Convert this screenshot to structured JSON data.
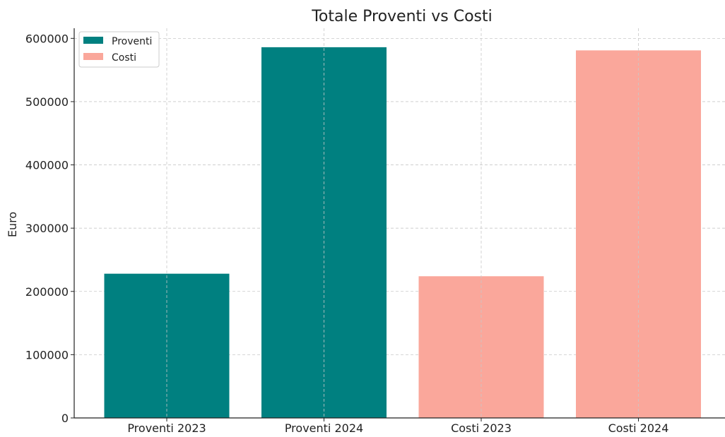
{
  "chart_data": {
    "type": "bar",
    "title": "Totale Proventi vs Costi",
    "xlabel": "",
    "ylabel": "Euro",
    "categories": [
      "Proventi 2023",
      "Proventi 2024",
      "Costi 2023",
      "Costi 2024"
    ],
    "values": [
      228000,
      586000,
      224000,
      581000
    ],
    "bar_series": [
      "Proventi",
      "Proventi",
      "Costi",
      "Costi"
    ],
    "series": [
      {
        "name": "Proventi",
        "color": "#008080"
      },
      {
        "name": "Costi",
        "color": "#FAA79B"
      }
    ],
    "ylim": [
      0,
      616000
    ],
    "yticks": [
      0,
      100000,
      200000,
      300000,
      400000,
      500000,
      600000
    ],
    "ytick_labels": [
      "0",
      "100000",
      "200000",
      "300000",
      "400000",
      "500000",
      "600000"
    ],
    "grid": true,
    "legend": "top-left"
  }
}
